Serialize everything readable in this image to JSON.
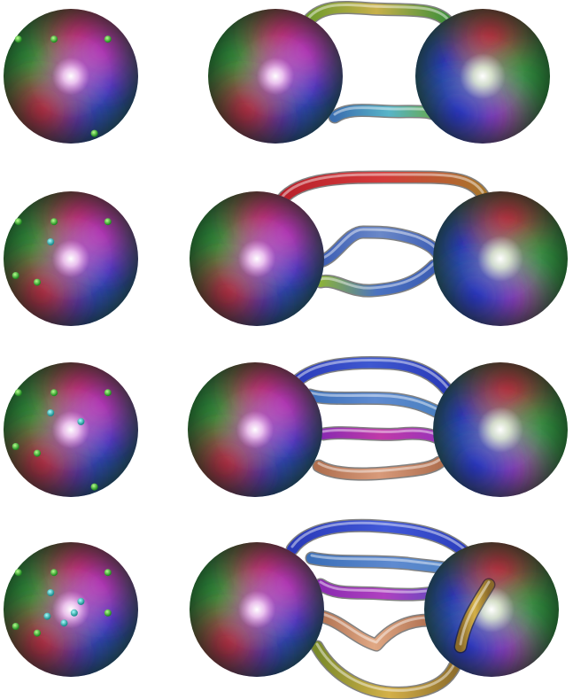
{
  "figure": {
    "rows": [
      {
        "sphere_dots": {
          "green": 4,
          "cyan": 0
        },
        "tubes": [
          {
            "color_from": "#6b9a2b",
            "color_mid": "#c8b04a",
            "color_to": "#3f8f3a"
          },
          {
            "color_from": "#3b6fb0",
            "color_mid": "#58b4c8",
            "color_to": "#6aa83a"
          }
        ]
      },
      {
        "sphere_dots": {
          "green": 5,
          "cyan": 1
        },
        "tubes": [
          {
            "color_from": "#b8202a",
            "color_mid": "#d43a3a",
            "color_to": "#a8762c"
          },
          {
            "color_from": "#3c5db4",
            "color_mid": "#6a88c8",
            "color_to": "#3c5db4"
          },
          {
            "color_from": "#8bb23a",
            "color_mid": "#4a72c0",
            "color_to": "#3c5db4"
          }
        ]
      },
      {
        "sphere_dots": {
          "green": 6,
          "cyan": 2
        },
        "tubes": [
          {
            "color_from": "#2a3ab8",
            "color_mid": "#3e58d0",
            "color_to": "#2a3ab8"
          },
          {
            "color_from": "#3b6fb8",
            "color_mid": "#5e8ad0",
            "color_to": "#4a80c0"
          },
          {
            "color_from": "#8a2ab0",
            "color_mid": "#c03aa8",
            "color_to": "#9a34b8"
          },
          {
            "color_from": "#b07050",
            "color_mid": "#d89a7a",
            "color_to": "#b07050"
          }
        ]
      },
      {
        "sphere_dots": {
          "green": 6,
          "cyan": 5
        },
        "tubes": [
          {
            "color_from": "#2a3ab8",
            "color_mid": "#4058d8",
            "color_to": "#2a3ab8"
          },
          {
            "color_from": "#3b6fb8",
            "color_mid": "#5e8ad0",
            "color_to": "#4a80c0"
          },
          {
            "color_from": "#8a2ab0",
            "color_mid": "#b040c0",
            "color_to": "#5a4ac0"
          },
          {
            "color_from": "#b07050",
            "color_mid": "#e0a884",
            "color_to": "#b07050"
          },
          {
            "color_from": "#7a8a2a",
            "color_mid": "#d4b048",
            "color_to": "#8a6a2a"
          }
        ]
      }
    ]
  }
}
